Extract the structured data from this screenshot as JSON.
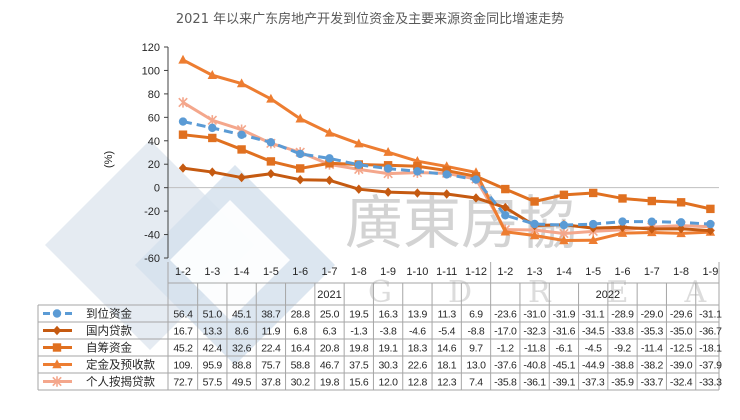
{
  "title": "2021 年以来广东房地产开发到位资金及主要来源资金同比增速走势",
  "watermark": {
    "cn": "廣東房協",
    "en": "GDREA"
  },
  "colors": {
    "到位资金": "#5b9bd5",
    "国内贷款": "#c55a11",
    "自筹资金": "#e07020",
    "定金及预收款": "#ed7d31",
    "个人按揭贷款": "#f4a78c",
    "axis": "#404040",
    "grid": "#bfbfbf"
  },
  "chart_data": {
    "type": "line",
    "title": "2021 年以来广东房地产开发到位资金及主要来源资金同比增速走势",
    "ylabel": "(%)",
    "xlabel": "",
    "ylim": [
      -60,
      120
    ],
    "yticks": [
      120,
      100,
      80,
      60,
      40,
      20,
      0,
      -20,
      -40,
      -60
    ],
    "categories": [
      "1-2",
      "1-3",
      "1-4",
      "1-5",
      "1-6",
      "1-7",
      "1-8",
      "1-9",
      "1-10",
      "1-11",
      "1-12",
      "1-2",
      "1-3",
      "1-4",
      "1-5",
      "1-6",
      "1-7",
      "1-8",
      "1-9"
    ],
    "year_groups": [
      {
        "label": "2021",
        "start": 0,
        "end": 10
      },
      {
        "label": "2022",
        "start": 11,
        "end": 18
      }
    ],
    "legend_position": "table-bottom",
    "series": [
      {
        "name": "到位资金",
        "marker": "circle",
        "dashed": true,
        "values": [
          56.4,
          51.0,
          45.1,
          38.7,
          28.8,
          25.0,
          19.5,
          16.3,
          13.9,
          11.3,
          6.9,
          -23.6,
          -31.0,
          -31.9,
          -31.1,
          -28.9,
          -29.0,
          -29.6,
          -31.1
        ],
        "labels": [
          "56.4",
          "51.0",
          "45.1",
          "38.7",
          "28.8",
          "25.0",
          "19.5",
          "16.3",
          "13.9",
          "11.3",
          "6.9",
          "-23.6",
          "-31.0",
          "-31.9",
          "-31.1",
          "-28.9",
          "-29.0",
          "-29.6",
          "-31.1"
        ]
      },
      {
        "name": "国内贷款",
        "marker": "diamond",
        "dashed": false,
        "values": [
          16.7,
          13.3,
          8.6,
          11.9,
          6.8,
          6.3,
          -1.3,
          -3.8,
          -4.6,
          -5.4,
          -8.8,
          -17.0,
          -32.3,
          -31.6,
          -34.5,
          -33.8,
          -35.3,
          -35.0,
          -36.7
        ],
        "labels": [
          "16.7",
          "13.3",
          "8.6",
          "11.9",
          "6.8",
          "6.3",
          "-1.3",
          "-3.8",
          "-4.6",
          "-5.4",
          "-8.8",
          "-17.0",
          "-32.3",
          "-31.6",
          "-34.5",
          "-33.8",
          "-35.3",
          "-35.0",
          "-36.7"
        ]
      },
      {
        "name": "自筹资金",
        "marker": "square",
        "dashed": false,
        "values": [
          45.2,
          42.4,
          32.6,
          22.4,
          16.4,
          20.8,
          19.8,
          19.1,
          18.3,
          14.6,
          9.7,
          -1.2,
          -11.8,
          -6.1,
          -4.5,
          -9.2,
          -11.4,
          -12.5,
          -18.1
        ],
        "labels": [
          "45.2",
          "42.4",
          "32.6",
          "22.4",
          "16.4",
          "20.8",
          "19.8",
          "19.1",
          "18.3",
          "14.6",
          "9.7",
          "-1.2",
          "-11.8",
          "-6.1",
          "-4.5",
          "-9.2",
          "-11.4",
          "-12.5",
          "-18.1"
        ]
      },
      {
        "name": "定金及预收款",
        "marker": "triangle",
        "dashed": false,
        "values": [
          109.0,
          95.9,
          88.8,
          75.7,
          58.8,
          46.7,
          37.5,
          30.3,
          22.6,
          18.1,
          13.0,
          -37.6,
          -40.8,
          -45.1,
          -44.9,
          -38.8,
          -38.2,
          -39.0,
          -37.9
        ],
        "labels": [
          "109.",
          "95.9",
          "88.8",
          "75.7",
          "58.8",
          "46.7",
          "37.5",
          "30.3",
          "22.6",
          "18.1",
          "13.0",
          "-37.6",
          "-40.8",
          "-45.1",
          "-44.9",
          "-38.8",
          "-38.2",
          "-39.0",
          "-37.9"
        ]
      },
      {
        "name": "个人按揭贷款",
        "marker": "star",
        "dashed": false,
        "values": [
          72.7,
          57.5,
          49.5,
          37.8,
          30.2,
          19.8,
          15.6,
          12.0,
          12.8,
          12.3,
          7.4,
          -35.8,
          -36.1,
          -39.1,
          -37.3,
          -35.9,
          -33.7,
          -32.4,
          -33.3
        ],
        "labels": [
          "72.7",
          "57.5",
          "49.5",
          "37.8",
          "30.2",
          "19.8",
          "15.6",
          "12.0",
          "12.8",
          "12.3",
          "7.4",
          "-35.8",
          "-36.1",
          "-39.1",
          "-37.3",
          "-35.9",
          "-33.7",
          "-32.4",
          "-33.3"
        ]
      }
    ]
  }
}
